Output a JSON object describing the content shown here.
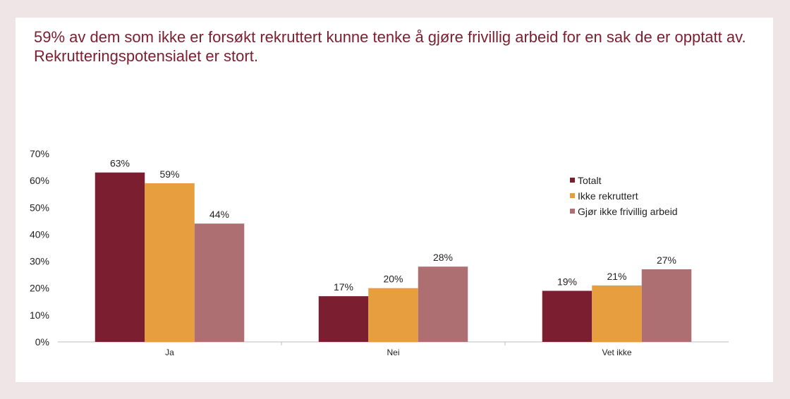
{
  "slide": {
    "title": "59% av dem som ikke er forsøkt rekruttert kunne tenke å gjøre frivillig arbeid for en sak de er opptatt av. Rekrutteringspotensialet er stort."
  },
  "colors": {
    "background": "#efe4e6",
    "title": "#7b1f30",
    "axis": "#bdbdbd"
  },
  "chart_data": {
    "type": "bar",
    "title": "59% av dem som ikke er forsøkt rekruttert kunne tenke å gjøre frivillig arbeid for en sak de er opptatt av. Rekrutteringspotensialet er stort.",
    "categories": [
      "Ja",
      "Nei",
      "Vet ikke"
    ],
    "series": [
      {
        "name": "Totalt",
        "color": "#7b1f30",
        "values": [
          63,
          17,
          19
        ]
      },
      {
        "name": "Ikke rekruttert",
        "color": "#e69e3e",
        "values": [
          59,
          20,
          21
        ]
      },
      {
        "name": "Gjør ikke frivillig arbeid",
        "color": "#ad6f72",
        "values": [
          44,
          28,
          27
        ]
      }
    ],
    "yticks": [
      "0%",
      "10%",
      "20%",
      "30%",
      "40%",
      "50%",
      "60%",
      "70%"
    ],
    "ylim": [
      0,
      70
    ],
    "value_suffix": "%",
    "grid": false,
    "legend_position": "right"
  }
}
